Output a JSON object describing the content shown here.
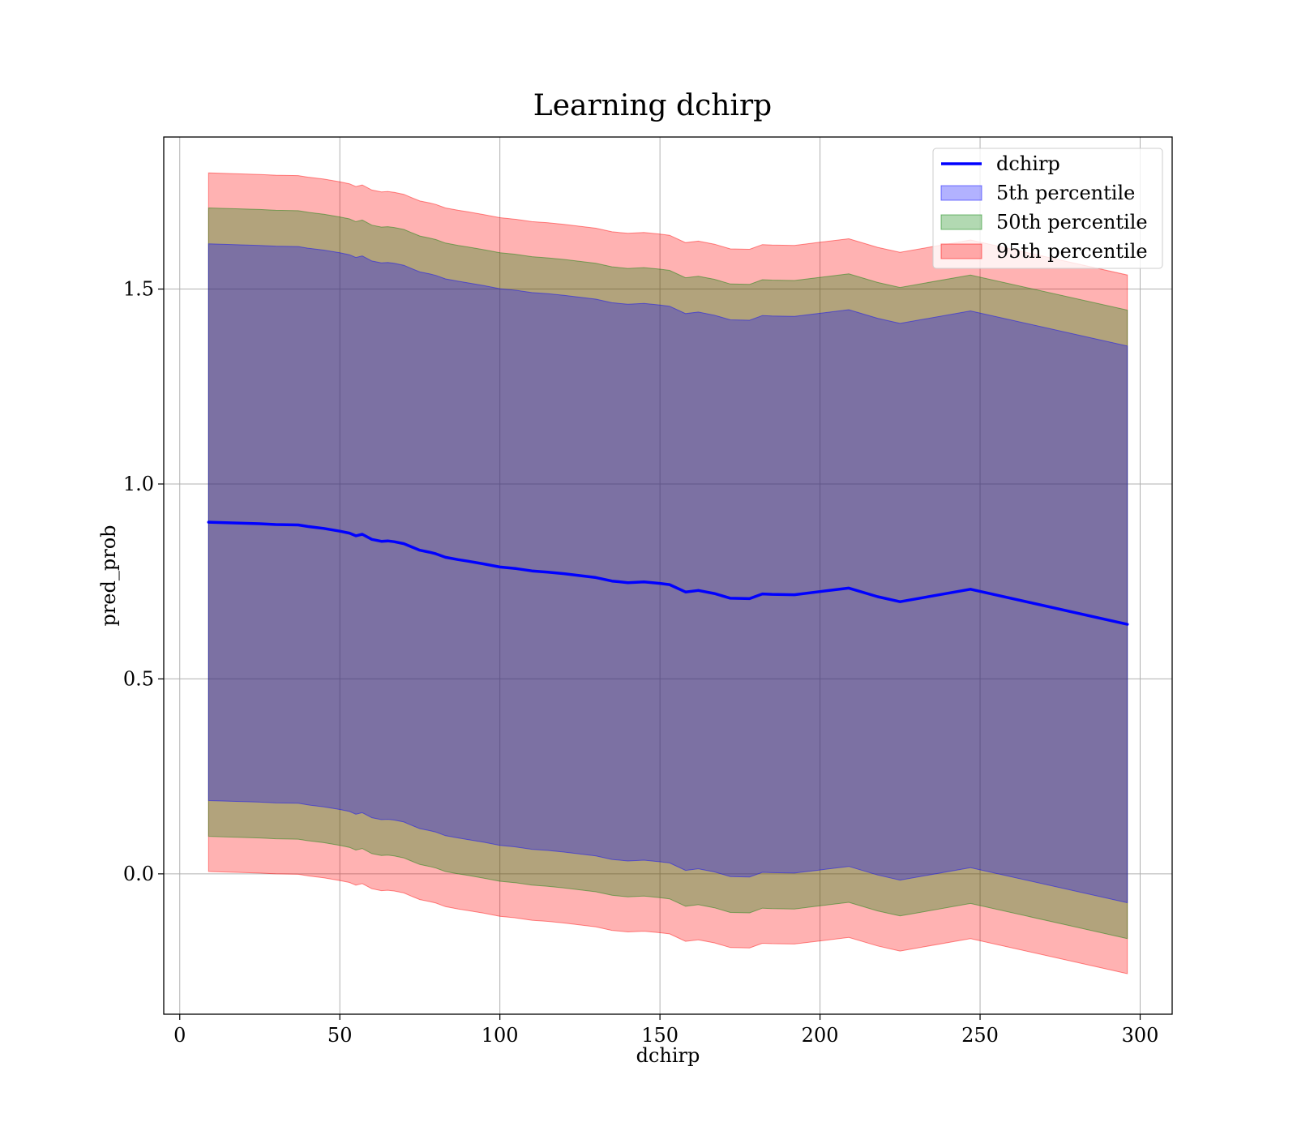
{
  "chart_data": {
    "type": "line",
    "title": "Learning dchirp",
    "xlabel": "dchirp",
    "ylabel": "pred_prob",
    "xlim": [
      -5,
      310
    ],
    "ylim": [
      -0.36,
      1.89
    ],
    "xticks": [
      0,
      50,
      100,
      150,
      200,
      250,
      300
    ],
    "yticks": [
      0.0,
      0.5,
      1.0,
      1.5
    ],
    "xtick_labels": [
      "0",
      "50",
      "100",
      "150",
      "200",
      "250",
      "300"
    ],
    "ytick_labels": [
      "0.0",
      "0.5",
      "1.0",
      "1.5"
    ],
    "grid": true,
    "legend_placement": "top-right",
    "legend": [
      {
        "label": "dchirp",
        "kind": "line",
        "color": "#0000ff"
      },
      {
        "label": "5th percentile",
        "kind": "band",
        "color": "#0000ff"
      },
      {
        "label": "50th percentile",
        "kind": "band",
        "color": "#008000"
      },
      {
        "label": "95th percentile",
        "kind": "band",
        "color": "#ff0000"
      }
    ],
    "x": [
      9,
      25,
      30,
      37,
      40,
      45,
      50,
      53,
      55,
      57,
      60,
      63,
      65,
      67,
      70,
      72,
      75,
      78,
      80,
      83,
      87,
      90,
      95,
      100,
      105,
      110,
      115,
      120,
      125,
      130,
      135,
      140,
      145,
      150,
      153,
      158,
      162,
      167,
      172,
      178,
      182,
      185,
      192,
      200,
      209,
      218,
      225,
      247,
      296
    ],
    "series": [
      {
        "name": "dchirp",
        "color": "#0000ff",
        "values": [
          0.902,
          0.898,
          0.896,
          0.895,
          0.891,
          0.886,
          0.879,
          0.874,
          0.867,
          0.871,
          0.858,
          0.853,
          0.854,
          0.852,
          0.847,
          0.84,
          0.83,
          0.825,
          0.821,
          0.812,
          0.806,
          0.802,
          0.795,
          0.787,
          0.783,
          0.777,
          0.774,
          0.77,
          0.765,
          0.76,
          0.751,
          0.747,
          0.749,
          0.745,
          0.742,
          0.723,
          0.727,
          0.719,
          0.707,
          0.706,
          0.718,
          0.717,
          0.716,
          0.724,
          0.733,
          0.711,
          0.698,
          0.73,
          0.64
        ]
      }
    ],
    "bands": [
      {
        "name": "95th percentile",
        "color": "#ff0000",
        "opacity": 0.3,
        "half_width": 0.896
      },
      {
        "name": "50th percentile",
        "color": "#008000",
        "opacity": 0.3,
        "half_width": 0.806
      },
      {
        "name": "5th percentile",
        "color": "#0000ff",
        "opacity": 0.3,
        "half_width": 0.714
      }
    ]
  }
}
